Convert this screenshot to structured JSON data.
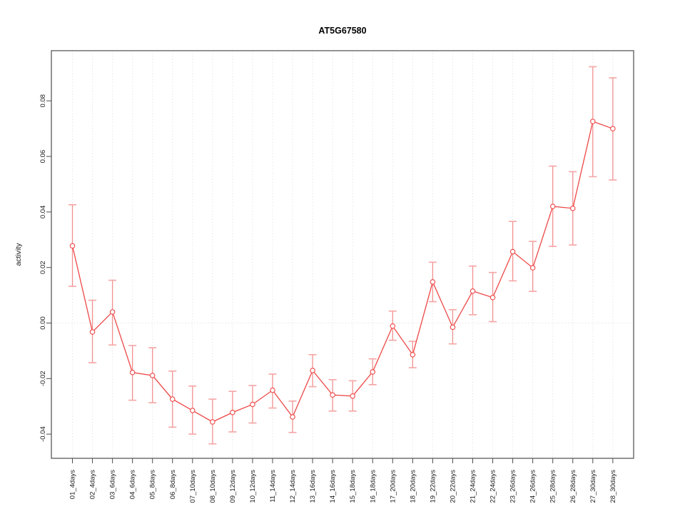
{
  "window_title": "AT5G67580",
  "chart_data": {
    "type": "line",
    "title": "AT5G67580",
    "xlabel": "",
    "ylabel": "activity",
    "legend": "none",
    "grid": "dotted vertical gridline at every category; dotted horizontal line at y=0",
    "ylim": [
      -0.0487,
      0.0981
    ],
    "ytick_values": [
      -0.04,
      -0.02,
      0.0,
      0.02,
      0.04,
      0.06,
      0.08
    ],
    "ytick_labels": [
      "-0.04",
      "-0.02",
      "0.00",
      "0.02",
      "0.04",
      "0.06",
      "0.08"
    ],
    "categories": [
      "01_4days",
      "02_4days",
      "03_6days",
      "04_6days",
      "05_8days",
      "06_8days",
      "07_10days",
      "08_10days",
      "09_12days",
      "10_12days",
      "11_14days",
      "12_14days",
      "13_16days",
      "14_16days",
      "15_18days",
      "16_18days",
      "17_20days",
      "18_20days",
      "19_22days",
      "20_22days",
      "21_24days",
      "22_24days",
      "23_26days",
      "24_26days",
      "25_28days",
      "26_28days",
      "27_30days",
      "28_30days"
    ],
    "series": [
      {
        "name": "activity",
        "marker": "open-circle",
        "values": [
          0.0278,
          -0.0032,
          0.004,
          -0.0178,
          -0.0189,
          -0.0274,
          -0.0315,
          -0.0356,
          -0.0322,
          -0.0293,
          -0.0242,
          -0.0338,
          -0.0171,
          -0.0259,
          -0.0263,
          -0.0176,
          -0.0011,
          -0.0114,
          0.0148,
          -0.0015,
          0.0115,
          0.0092,
          0.0257,
          0.0199,
          0.042,
          0.0413,
          0.0726,
          0.07
        ],
        "error_low": [
          0.0132,
          -0.0143,
          -0.0079,
          -0.0278,
          -0.0287,
          -0.0375,
          -0.04,
          -0.0435,
          -0.0392,
          -0.036,
          -0.0306,
          -0.0394,
          -0.0229,
          -0.0317,
          -0.0317,
          -0.0222,
          -0.0062,
          -0.0161,
          0.0077,
          -0.0075,
          0.003,
          0.0005,
          0.0152,
          0.0114,
          0.0276,
          0.0281,
          0.0527,
          0.0515
        ],
        "error_high": [
          0.0426,
          0.0082,
          0.0154,
          -0.0081,
          -0.0089,
          -0.0173,
          -0.0227,
          -0.0274,
          -0.0246,
          -0.0225,
          -0.0184,
          -0.0281,
          -0.0114,
          -0.0204,
          -0.0208,
          -0.0129,
          0.0043,
          -0.0066,
          0.0219,
          0.0048,
          0.0205,
          0.0182,
          0.0366,
          0.0294,
          0.0565,
          0.0545,
          0.0923,
          0.0883
        ]
      }
    ],
    "colors": {
      "line": "#ed4746",
      "error_stem": "#f2908f",
      "error_cap": "#f5a9a8",
      "point_fill": "#ffffff",
      "grid": "#dcdcdc",
      "axis": "#4d4d4d",
      "text": "#1a1a1a",
      "background": "#ffffff"
    }
  }
}
